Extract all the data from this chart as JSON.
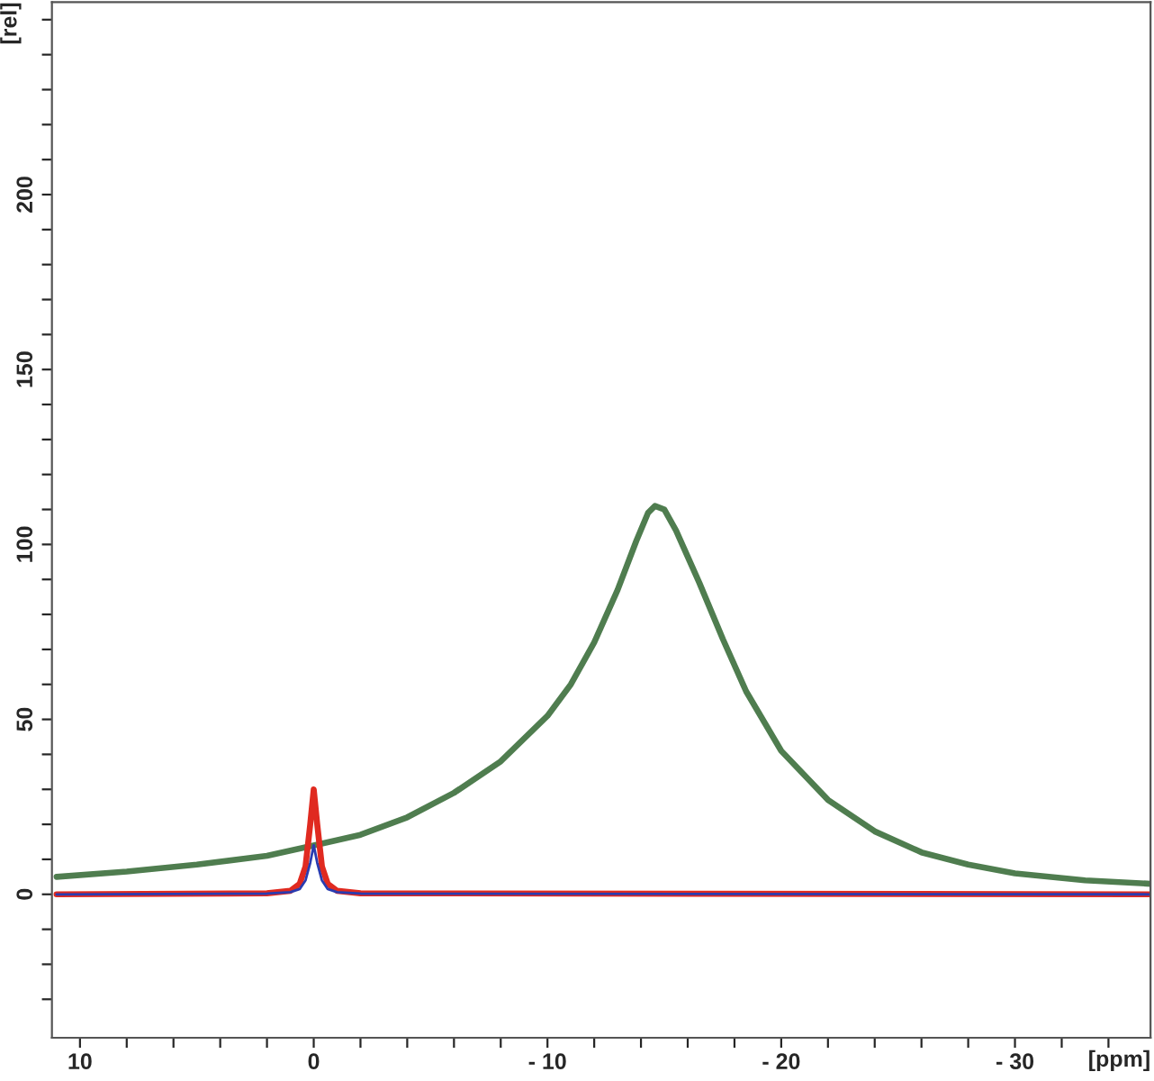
{
  "chart_data": {
    "type": "line",
    "xlabel": "[ppm]",
    "ylabel": "[rel]",
    "xlim": [
      11.2,
      -35.8
    ],
    "ylim": [
      -41,
      255
    ],
    "xticks": [
      {
        "value": 10,
        "label": "10"
      },
      {
        "value": 8,
        "label": null
      },
      {
        "value": 6,
        "label": null
      },
      {
        "value": 4,
        "label": null
      },
      {
        "value": 2,
        "label": null
      },
      {
        "value": 0,
        "label": "0"
      },
      {
        "value": -2,
        "label": null
      },
      {
        "value": -4,
        "label": null
      },
      {
        "value": -6,
        "label": null
      },
      {
        "value": -8,
        "label": null
      },
      {
        "value": -10,
        "label": "- 10"
      },
      {
        "value": -12,
        "label": null
      },
      {
        "value": -14,
        "label": null
      },
      {
        "value": -16,
        "label": null
      },
      {
        "value": -18,
        "label": null
      },
      {
        "value": -20,
        "label": "- 20"
      },
      {
        "value": -22,
        "label": null
      },
      {
        "value": -24,
        "label": null
      },
      {
        "value": -26,
        "label": null
      },
      {
        "value": -28,
        "label": null
      },
      {
        "value": -30,
        "label": "- 30"
      },
      {
        "value": -32,
        "label": null
      },
      {
        "value": -34,
        "label": null
      }
    ],
    "yticks": [
      {
        "value": -30,
        "label": null
      },
      {
        "value": -20,
        "label": null
      },
      {
        "value": -10,
        "label": null
      },
      0,
      {
        "value": 10,
        "label": null
      },
      {
        "value": 20,
        "label": null
      },
      {
        "value": 30,
        "label": null
      },
      {
        "value": 40,
        "label": null
      },
      50,
      {
        "value": 60,
        "label": null
      },
      {
        "value": 70,
        "label": null
      },
      {
        "value": 80,
        "label": null
      },
      {
        "value": 90,
        "label": null
      },
      100,
      {
        "value": 110,
        "label": null
      },
      {
        "value": 120,
        "label": null
      },
      {
        "value": 130,
        "label": null
      },
      {
        "value": 140,
        "label": null
      },
      150,
      {
        "value": 160,
        "label": null
      },
      {
        "value": 170,
        "label": null
      },
      {
        "value": 180,
        "label": null
      },
      {
        "value": 190,
        "label": null
      },
      200,
      {
        "value": 210,
        "label": null
      },
      {
        "value": 220,
        "label": null
      },
      {
        "value": 230,
        "label": null
      },
      {
        "value": 240,
        "label": null
      },
      {
        "value": 250,
        "label": null
      }
    ],
    "grid": false,
    "marker": "none",
    "line_style": "solid",
    "series": [
      {
        "color": "#4f7d4f",
        "x": [
          11,
          8,
          5,
          2,
          0,
          -2,
          -4,
          -6,
          -8,
          -10,
          -11,
          -12,
          -13,
          -13.8,
          -14.3,
          -14.6,
          -15,
          -15.5,
          -16.5,
          -17.5,
          -18.5,
          -20,
          -22,
          -24,
          -26,
          -28,
          -30,
          -33,
          -35.8
        ],
        "values": [
          5,
          6.5,
          8.5,
          11,
          14,
          17,
          22,
          29,
          38,
          51,
          60,
          72,
          87,
          101,
          109,
          111,
          110,
          104,
          89,
          73,
          58,
          41,
          27,
          18,
          12,
          8.5,
          6,
          4,
          3
        ]
      },
      {
        "color": "#e02a20",
        "x": [
          11,
          2,
          1,
          0.6,
          0.35,
          0.15,
          0,
          -0.15,
          -0.35,
          -0.6,
          -1,
          -2,
          -35.8
        ],
        "values": [
          0,
          0.3,
          1,
          3,
          8,
          20,
          30,
          20,
          8,
          3,
          1,
          0.3,
          0
        ]
      },
      {
        "color": "#2a3cb0",
        "x": [
          11,
          2,
          1,
          0.6,
          0.35,
          0.15,
          0,
          -0.15,
          -0.35,
          -0.6,
          -1,
          -2,
          -35.8
        ],
        "values": [
          0,
          0.2,
          0.6,
          1.5,
          4,
          9,
          14,
          9,
          4,
          1.5,
          0.6,
          0.2,
          0
        ]
      }
    ]
  }
}
